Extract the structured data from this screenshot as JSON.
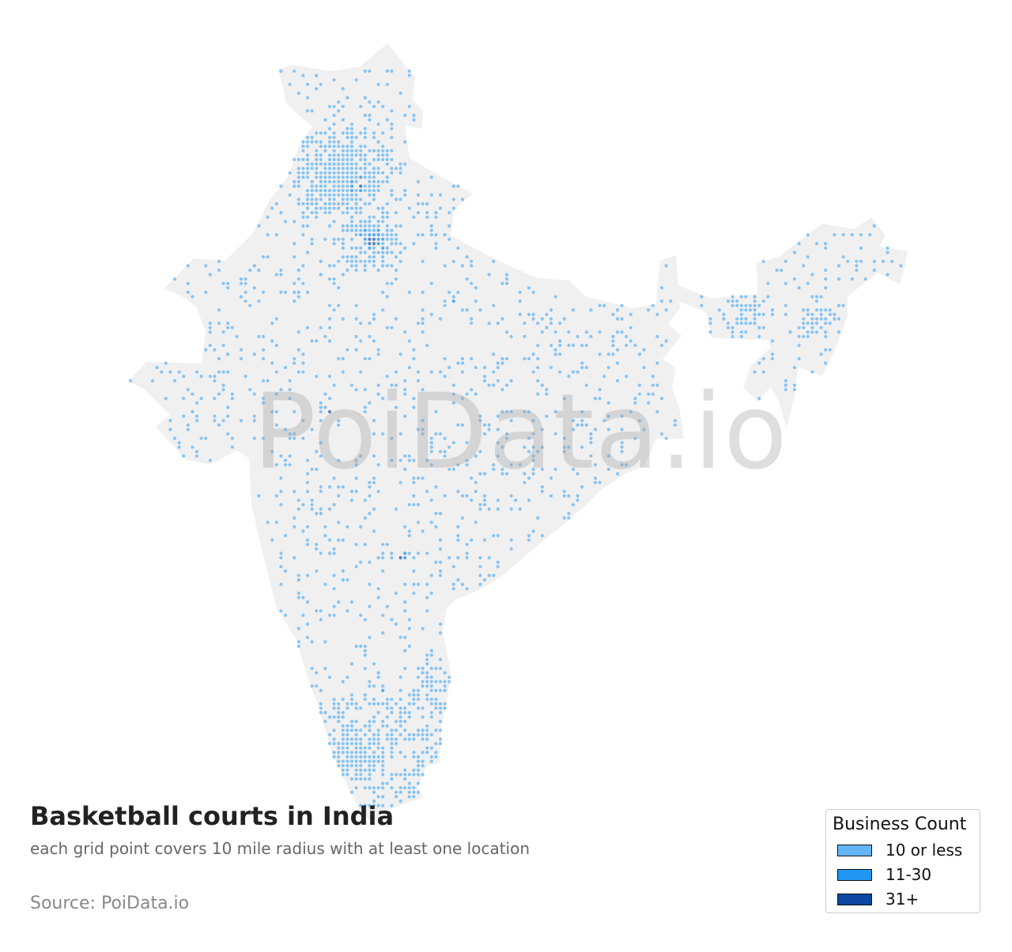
{
  "title": "Basketball courts in India",
  "subtitle": "each grid point covers 10 mile radius with at least one location",
  "source": "Source: PoiData.io",
  "watermark": "PoiData.io",
  "map": {
    "land_color": "#f0f0f0"
  },
  "legend": {
    "title": "Business Count",
    "items": [
      {
        "label": "10 or less",
        "color": "#64b5f6"
      },
      {
        "label": "11-30",
        "color": "#2196f3"
      },
      {
        "label": "31+",
        "color": "#0d47a1"
      }
    ]
  }
}
